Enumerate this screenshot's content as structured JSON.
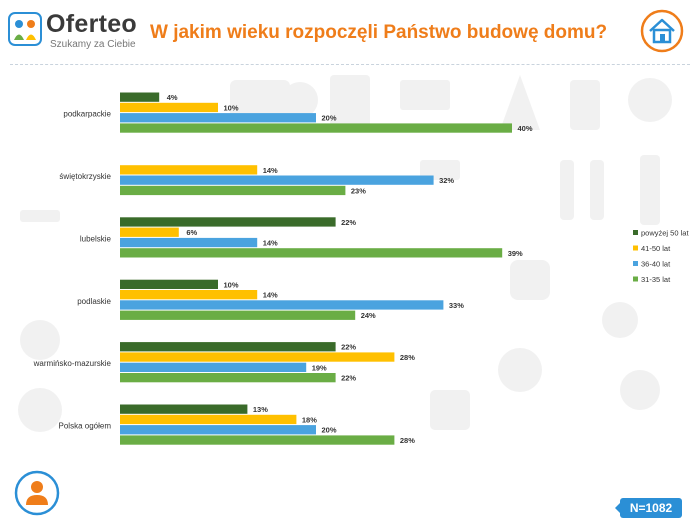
{
  "header": {
    "logo_name": "Oferteo",
    "logo_tagline": "Szukamy za Ciebie",
    "title": "W jakim wieku rozpoczęli Państwo budowę domu?"
  },
  "badge": {
    "sample": "N=1082"
  },
  "icons": {
    "house": "house-icon",
    "person": "person-icon"
  },
  "colors": {
    "accent": "#ef7d1a",
    "blue_badge": "#2b8fd6",
    "series": [
      "#3a6b2a",
      "#ffc000",
      "#4aa3df",
      "#6aad45"
    ]
  },
  "chart_data": {
    "type": "bar",
    "orientation": "horizontal",
    "categories": [
      "podkarpackie",
      "świętokrzyskie",
      "lubelskie",
      "podlaskie",
      "warmińsko-mazurskie",
      "Polska ogółem"
    ],
    "series": [
      {
        "name": "powyżej 50 lat",
        "values": [
          4,
          null,
          22,
          10,
          22,
          13
        ]
      },
      {
        "name": "41-50 lat",
        "values": [
          10,
          14,
          6,
          14,
          28,
          18
        ]
      },
      {
        "name": "36-40 lat",
        "values": [
          20,
          32,
          14,
          33,
          19,
          20
        ]
      },
      {
        "name": "31-35 lat",
        "values": [
          40,
          23,
          39,
          24,
          22,
          28
        ]
      }
    ],
    "value_suffix": "%",
    "xlim": [
      0,
      40
    ],
    "legend_position": "right",
    "grid": false
  }
}
